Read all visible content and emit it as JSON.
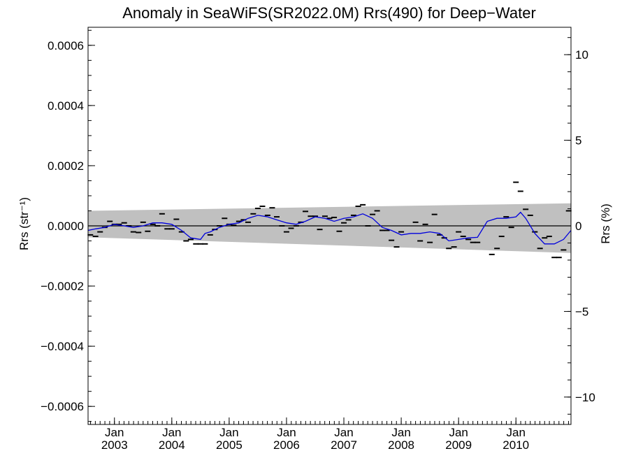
{
  "chart_data": {
    "type": "scatter",
    "title": "Anomaly in SeaWiFS(SR2022.0M) Rrs(490) for Deep−Water",
    "ylabel": "Rrs (str⁻¹)",
    "y2label": "Rrs (%)",
    "xlim": [
      2002.54,
      2010.96
    ],
    "ylim": [
      -0.00066,
      0.00066
    ],
    "y2lim": [
      -11.6,
      11.6
    ],
    "grid": false,
    "x_ticks": [
      {
        "value": 2003.0,
        "month": "Jan",
        "year": "2003"
      },
      {
        "value": 2004.0,
        "month": "Jan",
        "year": "2004"
      },
      {
        "value": 2005.0,
        "month": "Jan",
        "year": "2005"
      },
      {
        "value": 2006.0,
        "month": "Jan",
        "year": "2006"
      },
      {
        "value": 2007.0,
        "month": "Jan",
        "year": "2007"
      },
      {
        "value": 2008.0,
        "month": "Jan",
        "year": "2008"
      },
      {
        "value": 2009.0,
        "month": "Jan",
        "year": "2009"
      },
      {
        "value": 2010.0,
        "month": "Jan",
        "year": "2010"
      }
    ],
    "y_ticks": [
      {
        "value": 0.0006,
        "label": "0.0006"
      },
      {
        "value": 0.0004,
        "label": "0.0004"
      },
      {
        "value": 0.0002,
        "label": "0.0002"
      },
      {
        "value": 0.0,
        "label": "0.0000"
      },
      {
        "value": -0.0002,
        "label": "−0.0002"
      },
      {
        "value": -0.0004,
        "label": "−0.0004"
      },
      {
        "value": -0.0006,
        "label": "−0.0006"
      }
    ],
    "y2_ticks": [
      {
        "value": 10,
        "label": "10"
      },
      {
        "value": 5,
        "label": "5"
      },
      {
        "value": 0,
        "label": "0"
      },
      {
        "value": -5,
        "label": "−5"
      },
      {
        "value": -10,
        "label": "−10"
      }
    ],
    "band": {
      "x": [
        2002.54,
        2010.96
      ],
      "upper": [
        5e-05,
        7.5e-05
      ],
      "lower": [
        -3.8e-05,
        -9e-05
      ],
      "color": "#c0c0c0"
    },
    "points": {
      "color": "#000000",
      "x": [
        2002.58,
        2002.67,
        2002.75,
        2002.83,
        2002.92,
        2003.0,
        2003.08,
        2003.17,
        2003.25,
        2003.33,
        2003.42,
        2003.5,
        2003.58,
        2003.67,
        2003.75,
        2003.83,
        2003.92,
        2004.0,
        2004.08,
        2004.17,
        2004.25,
        2004.33,
        2004.42,
        2004.5,
        2004.58,
        2004.67,
        2004.75,
        2004.83,
        2004.92,
        2005.0,
        2005.08,
        2005.17,
        2005.25,
        2005.33,
        2005.42,
        2005.5,
        2005.58,
        2005.67,
        2005.75,
        2005.83,
        2005.92,
        2006.0,
        2006.08,
        2006.17,
        2006.25,
        2006.33,
        2006.42,
        2006.5,
        2006.58,
        2006.67,
        2006.75,
        2006.83,
        2006.92,
        2007.0,
        2007.08,
        2007.17,
        2007.25,
        2007.33,
        2007.42,
        2007.5,
        2007.58,
        2007.67,
        2007.75,
        2007.83,
        2007.92,
        2008.0,
        2008.25,
        2008.33,
        2008.42,
        2008.5,
        2008.58,
        2008.67,
        2008.75,
        2008.83,
        2008.92,
        2009.0,
        2009.08,
        2009.17,
        2009.25,
        2009.33,
        2009.58,
        2009.67,
        2009.75,
        2009.83,
        2009.92,
        2010.0,
        2010.08,
        2010.17,
        2010.25,
        2010.33,
        2010.42,
        2010.5,
        2010.58,
        2010.67,
        2010.75,
        2010.83,
        2010.92
      ],
      "y": [
        -3e-05,
        -3.5e-05,
        -2e-05,
        -5e-06,
        1.5e-05,
        5e-06,
        5e-06,
        1e-05,
        0.0,
        -2e-05,
        -2.2e-05,
        1.2e-05,
        -1.8e-05,
        5e-06,
        0.0,
        4e-05,
        -1e-05,
        -1e-05,
        2.2e-05,
        -2e-05,
        -5e-05,
        -4.5e-05,
        -6e-05,
        -6e-05,
        -6e-05,
        -3e-05,
        -1.2e-05,
        0.0,
        2.5e-05,
        5e-06,
        2e-06,
        1.5e-05,
        2e-05,
        1.2e-05,
        4e-05,
        5.8e-05,
        6.5e-05,
        3.5e-05,
        6e-05,
        3e-05,
        0.0,
        -2e-05,
        -8e-06,
        0.0,
        1.2e-05,
        4.8e-05,
        3.2e-05,
        3.2e-05,
        -1.2e-05,
        3.2e-05,
        2.5e-05,
        2.8e-05,
        -1.8e-05,
        1e-05,
        2e-05,
        3.5e-05,
        6.5e-05,
        7e-05,
        0.0,
        3.8e-05,
        5e-05,
        -1.5e-05,
        -1.5e-05,
        -4.8e-05,
        -7e-05,
        -2e-05,
        1.2e-05,
        -5e-05,
        5e-06,
        -5.5e-05,
        3.8e-05,
        -3e-05,
        -4e-05,
        -7.5e-05,
        -7e-05,
        -2e-05,
        -3.5e-05,
        -4.5e-05,
        -5.5e-05,
        -5.5e-05,
        -9.5e-05,
        -7.5e-05,
        -3.5e-05,
        3e-05,
        -5e-06,
        0.000145,
        0.000115,
        5.5e-05,
        3.5e-05,
        -2e-05,
        -7.5e-05,
        -4e-05,
        -3.5e-05,
        -0.000105,
        -0.000105,
        -8e-05,
        5e-05
      ]
    },
    "series": [
      {
        "type": "line",
        "color": "#0000dd",
        "x": [
          2002.54,
          2002.67,
          2002.83,
          2003.0,
          2003.17,
          2003.33,
          2003.5,
          2003.67,
          2003.83,
          2004.0,
          2004.17,
          2004.33,
          2004.5,
          2004.58,
          2004.67,
          2004.83,
          2005.0,
          2005.17,
          2005.33,
          2005.5,
          2005.67,
          2005.83,
          2006.0,
          2006.17,
          2006.33,
          2006.5,
          2006.67,
          2006.83,
          2007.0,
          2007.17,
          2007.33,
          2007.5,
          2007.67,
          2007.83,
          2008.0,
          2008.17,
          2008.33,
          2008.5,
          2008.67,
          2008.83,
          2009.0,
          2009.17,
          2009.33,
          2009.5,
          2009.67,
          2009.83,
          2010.0,
          2010.08,
          2010.17,
          2010.33,
          2010.5,
          2010.67,
          2010.83,
          2010.96
        ],
        "y": [
          -1.5e-05,
          -1e-05,
          -5e-06,
          5e-06,
          0.0,
          -5e-06,
          0.0,
          1e-05,
          1e-05,
          5e-06,
          -1.5e-05,
          -4e-05,
          -4.5e-05,
          -2.5e-05,
          -2e-05,
          -5e-06,
          5e-06,
          1e-05,
          2.5e-05,
          3.5e-05,
          3e-05,
          2e-05,
          1e-05,
          5e-06,
          1.5e-05,
          3e-05,
          2.5e-05,
          1.5e-05,
          2.5e-05,
          3e-05,
          4e-05,
          2.5e-05,
          -5e-06,
          -1.5e-05,
          -3e-05,
          -2.5e-05,
          -2.5e-05,
          -2e-05,
          -2.5e-05,
          -5e-05,
          -4.5e-05,
          -4e-05,
          -3.8e-05,
          1.5e-05,
          2.5e-05,
          2.5e-05,
          3e-05,
          4.5e-05,
          2.5e-05,
          -2.5e-05,
          -6e-05,
          -6e-05,
          -4.5e-05,
          -1.5e-05
        ]
      }
    ]
  }
}
